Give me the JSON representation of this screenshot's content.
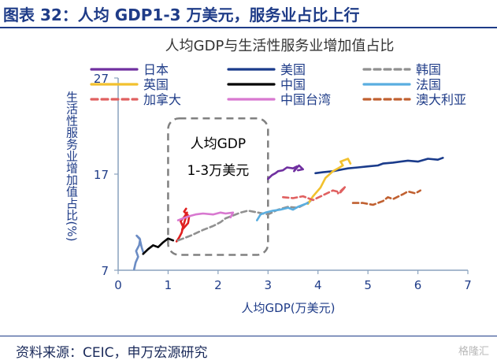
{
  "figure": {
    "title": "图表 32：人均 GDP1-3 万美元，服务业占比上行",
    "source": "资料来源：CEIC，申万宏源研究",
    "watermark": "格隆汇"
  },
  "colors": {
    "header": "#1f3c88",
    "axis": "#8aa2bd",
    "annotation": "#808080"
  },
  "chart_data": {
    "type": "line",
    "title": "人均GDP与生活性服务业增加值占比",
    "xlabel": "人均GDP(万美元)",
    "ylabel": "生活性服务业增加值占比(%)",
    "xlim": [
      0,
      7
    ],
    "ylim": [
      7,
      27
    ],
    "xticks": [
      0,
      1,
      2,
      3,
      4,
      5,
      6,
      7
    ],
    "yticks": [
      7,
      17,
      27
    ],
    "annotation": {
      "line1": "人均GDP",
      "line2": "1-3万美元",
      "x_range": [
        1,
        3
      ]
    },
    "legend_position": "top",
    "series": [
      {
        "name": "日本",
        "color": "#7030a0",
        "dash": "solid",
        "x": [
          3.0,
          3.08,
          3.15,
          3.2,
          3.3,
          3.38,
          3.5,
          3.58,
          3.52,
          3.62,
          3.7,
          3.6
        ],
        "y": [
          16.5,
          16.9,
          17.1,
          17.3,
          17.4,
          17.7,
          17.6,
          17.8,
          17.3,
          17.9,
          17.5,
          17.4
        ]
      },
      {
        "name": "美国",
        "color": "#1a3b8b",
        "dash": "solid",
        "x": [
          3.95,
          4.1,
          4.3,
          4.5,
          4.6,
          4.8,
          5.0,
          5.2,
          5.3,
          5.5,
          5.8,
          6.0,
          6.2,
          6.4,
          6.5
        ],
        "y": [
          17.1,
          17.2,
          17.3,
          17.5,
          17.6,
          17.7,
          17.8,
          17.9,
          18.1,
          18.2,
          18.4,
          18.3,
          18.6,
          18.5,
          18.7
        ]
      },
      {
        "name": "韩国",
        "color": "#909090",
        "dash": "dashed",
        "x": [
          1.2,
          1.45,
          1.7,
          1.9,
          2.05,
          2.15,
          2.3,
          2.45,
          2.6,
          2.8,
          3.0,
          3.2,
          3.4,
          3.6,
          3.75,
          3.85
        ],
        "y": [
          10.1,
          10.6,
          11.2,
          11.6,
          12.0,
          12.4,
          12.7,
          13.0,
          13.2,
          13.0,
          12.8,
          13.3,
          13.6,
          13.5,
          13.9,
          14.2
        ]
      },
      {
        "name": "英国",
        "color": "#f2c12e",
        "dash": "solid",
        "x": [
          3.8,
          3.9,
          4.05,
          4.15,
          4.3,
          4.4,
          4.5,
          4.45,
          4.6,
          4.65
        ],
        "y": [
          13.9,
          14.7,
          15.6,
          16.6,
          17.3,
          17.6,
          17.9,
          18.3,
          18.6,
          18.1
        ]
      },
      {
        "name": "中国",
        "color": "#000000",
        "dash": "solid",
        "x": [
          0.5,
          0.6,
          0.7,
          0.8,
          0.9,
          1.0,
          1.1
        ],
        "y": [
          8.7,
          9.2,
          9.6,
          9.4,
          9.9,
          10.3,
          10.1
        ]
      },
      {
        "name": "法国",
        "color": "#5aaee0",
        "dash": "solid",
        "x": [
          2.78,
          2.85,
          2.95,
          3.1,
          3.25,
          3.4,
          3.5,
          3.6,
          3.7,
          3.8
        ],
        "y": [
          12.2,
          12.8,
          13.0,
          13.2,
          13.3,
          13.5,
          13.3,
          13.6,
          13.8,
          14.0
        ]
      },
      {
        "name": "加拿大",
        "color": "#e06060",
        "dash": "dashed",
        "x": [
          3.3,
          3.5,
          3.7,
          3.9,
          4.1,
          4.3,
          4.45,
          4.55,
          4.4
        ],
        "y": [
          14.6,
          14.5,
          14.7,
          14.3,
          14.8,
          15.3,
          15.1,
          15.7,
          15.0
        ]
      },
      {
        "name": "中国台湾",
        "color": "#d878d0",
        "dash": "solid",
        "x": [
          1.2,
          1.4,
          1.55,
          1.7,
          1.9,
          2.05,
          2.15,
          2.3,
          2.25
        ],
        "y": [
          12.2,
          12.6,
          12.8,
          12.9,
          12.8,
          13.0,
          12.9,
          13.0,
          12.5
        ]
      },
      {
        "name": "澳大利亚",
        "color": "#c06030",
        "dash": "dashed",
        "x": [
          4.7,
          4.9,
          5.1,
          5.3,
          5.4,
          5.5,
          5.7,
          5.8,
          5.95,
          6.05
        ],
        "y": [
          14.0,
          14.0,
          13.8,
          14.2,
          14.6,
          14.4,
          14.9,
          15.2,
          15.0,
          15.3
        ]
      }
    ],
    "extra_segments": [
      {
        "color": "#6b8cc4",
        "x": [
          0.32,
          0.35,
          0.4,
          0.36,
          0.42,
          0.44,
          0.37,
          0.43,
          0.47,
          0.5
        ],
        "y": [
          7.1,
          7.8,
          8.4,
          9.0,
          9.6,
          10.2,
          10.6,
          10.3,
          9.4,
          8.9
        ]
      },
      {
        "color": "#e02020",
        "x": [
          1.17,
          1.22,
          1.27,
          1.3,
          1.25,
          1.33,
          1.38,
          1.35,
          1.28,
          1.4,
          1.42,
          1.32,
          1.36
        ],
        "y": [
          10.0,
          10.4,
          10.9,
          11.5,
          12.1,
          12.6,
          13.0,
          12.4,
          11.2,
          11.9,
          12.6,
          13.1,
          13.4
        ]
      }
    ]
  }
}
